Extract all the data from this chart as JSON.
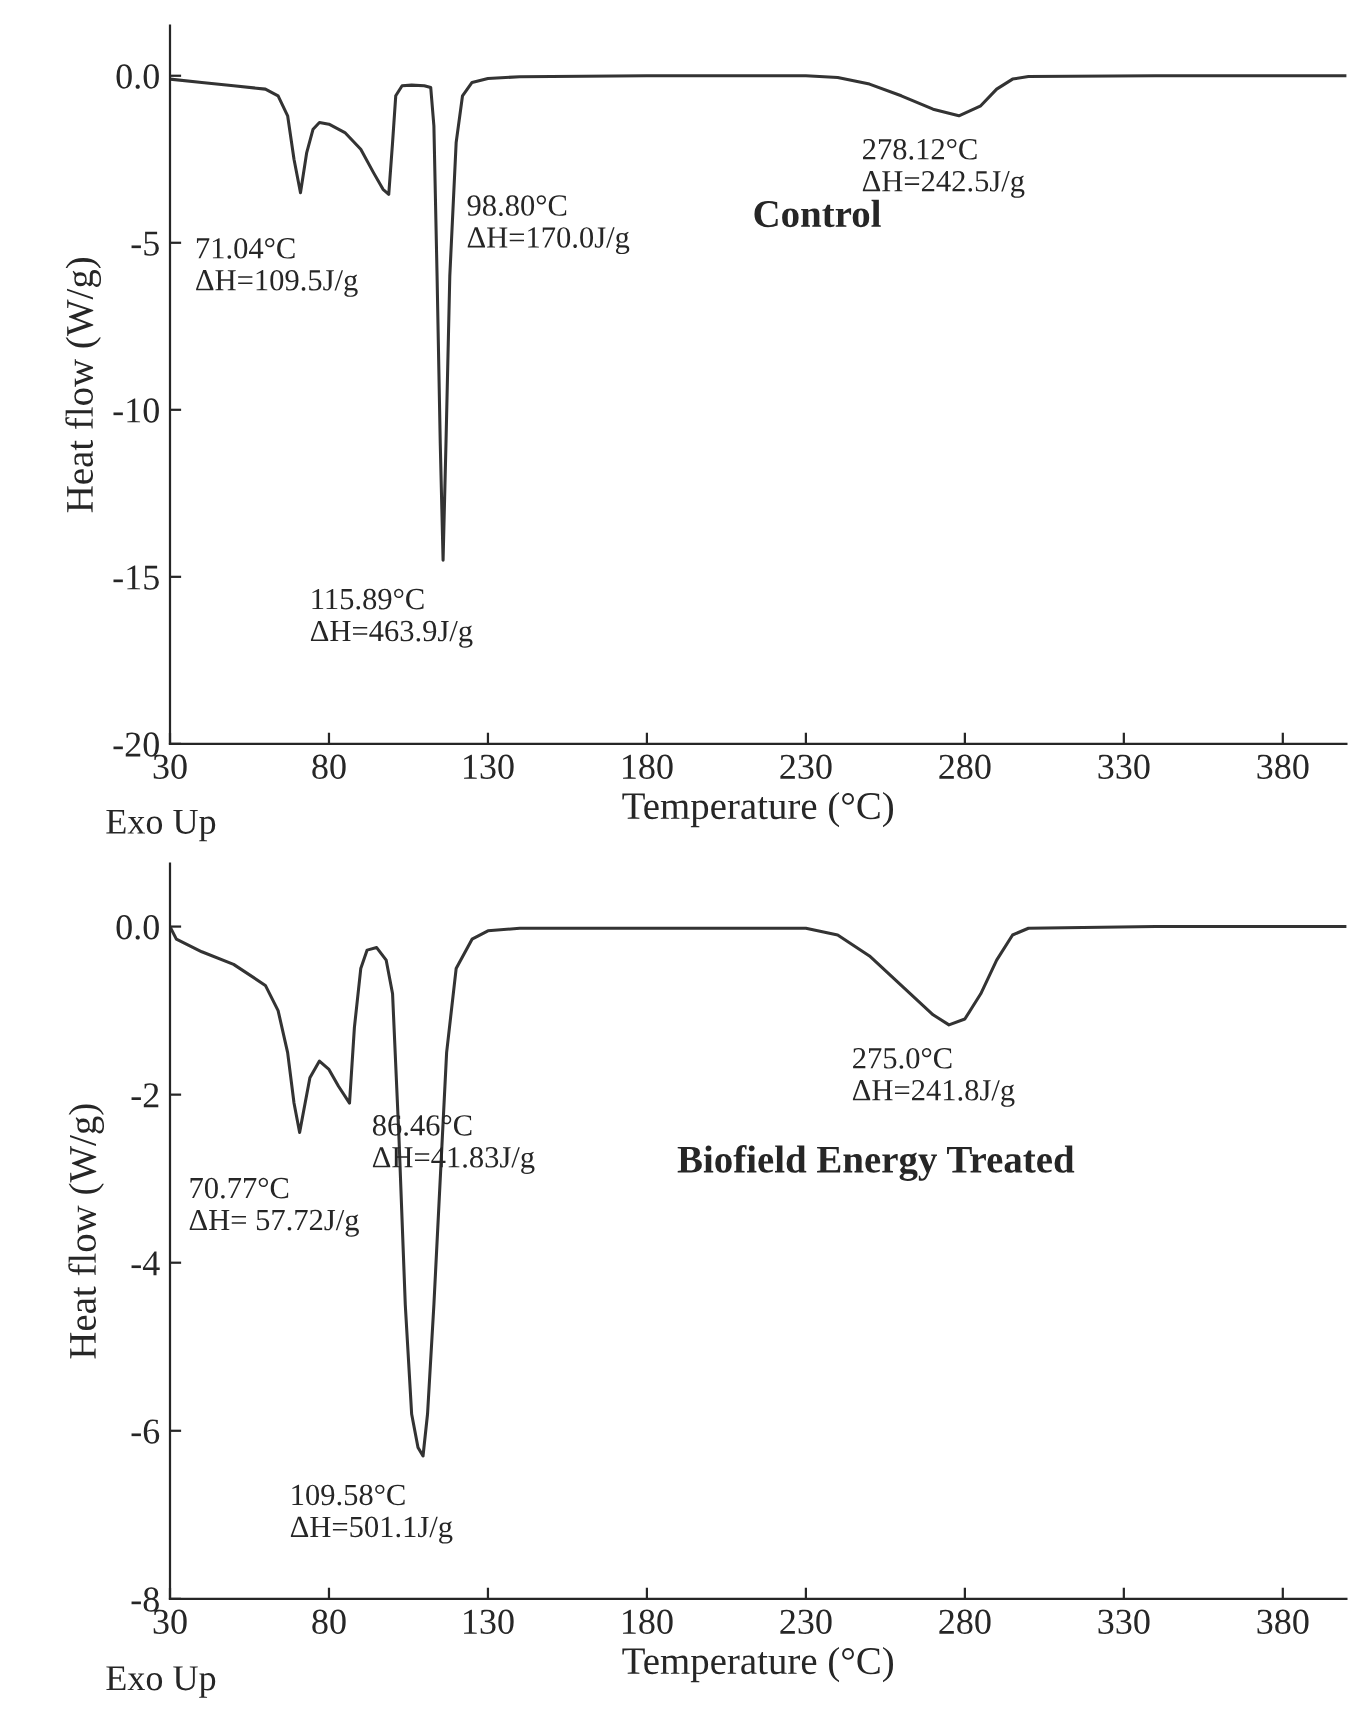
{
  "chart_data": [
    {
      "type": "line",
      "xlabel": "Temperature (°C)",
      "ylabel": "Heat flow (W/g)",
      "grid": false,
      "legend": false,
      "marker": "none",
      "line_style": "solid",
      "xlim": [
        30,
        400
      ],
      "xticks": [
        30,
        80,
        130,
        180,
        230,
        280,
        330,
        380
      ],
      "ylim": [
        -20,
        1.5
      ],
      "yticks": [
        {
          "value": 0,
          "label": "0.0"
        },
        -5,
        -10,
        -15,
        -20
      ],
      "series": [
        {
          "color": "#333333",
          "x": [
            30,
            40,
            50,
            60,
            64,
            67,
            69,
            71.04,
            73,
            75,
            77,
            80,
            85,
            90,
            94,
            97,
            98.8,
            100,
            101,
            103,
            106,
            110,
            112,
            113,
            114,
            115,
            115.89,
            116.8,
            118,
            120,
            122,
            125,
            130,
            140,
            180,
            230,
            240,
            250,
            260,
            270,
            278.12,
            285,
            290,
            295,
            300,
            340,
            400
          ],
          "values": [
            -0.1,
            -0.2,
            -0.3,
            -0.4,
            -0.6,
            -1.2,
            -2.5,
            -3.5,
            -2.3,
            -1.6,
            -1.4,
            -1.45,
            -1.7,
            -2.2,
            -2.9,
            -3.4,
            -3.55,
            -2,
            -0.6,
            -0.3,
            -0.28,
            -0.3,
            -0.35,
            -1.5,
            -6,
            -11,
            -14.5,
            -11,
            -6,
            -2,
            -0.6,
            -0.2,
            -0.08,
            -0.03,
            0,
            0,
            -0.05,
            -0.25,
            -0.6,
            -1.0,
            -1.2,
            -0.9,
            -0.4,
            -0.1,
            -0.02,
            0,
            0
          ]
        }
      ],
      "annotations": [
        {
          "text": "71.04°C\nΔH=109.5J/g",
          "x": 71.04,
          "y": -3.5
        },
        {
          "text": "98.80°C\nΔH=170.0J/g",
          "x": 98.8,
          "y": -3.55
        },
        {
          "text": "115.89°C\nΔH=463.9J/g",
          "x": 115.89,
          "y": -14.5
        },
        {
          "text": "278.12°C\nΔH=242.5J/g",
          "x": 278.12,
          "y": -1.2
        },
        "Control",
        "Exo Up"
      ]
    },
    {
      "type": "line",
      "xlabel": "Temperature (°C)",
      "ylabel": "Heat flow (W/g)",
      "grid": false,
      "legend": false,
      "marker": "none",
      "line_style": "solid",
      "xlim": [
        30,
        400
      ],
      "xticks": [
        30,
        80,
        130,
        180,
        230,
        280,
        330,
        380
      ],
      "ylim": [
        -8,
        0.75
      ],
      "yticks": [
        {
          "value": 0,
          "label": "0.0"
        },
        -2,
        -4,
        -6,
        -8
      ],
      "series": [
        {
          "color": "#333333",
          "x": [
            30,
            32,
            40,
            50,
            60,
            64,
            67,
            69,
            70.77,
            72,
            74,
            77,
            80,
            83,
            86.46,
            88,
            90,
            92,
            95,
            98,
            100,
            102,
            104,
            106,
            108,
            109.58,
            111,
            113,
            115,
            117,
            120,
            125,
            130,
            140,
            180,
            230,
            240,
            250,
            260,
            270,
            275,
            280,
            285,
            290,
            295,
            300,
            340,
            400
          ],
          "values": [
            0,
            -0.15,
            -0.3,
            -0.45,
            -0.7,
            -1.0,
            -1.5,
            -2.1,
            -2.45,
            -2.2,
            -1.8,
            -1.6,
            -1.7,
            -1.9,
            -2.1,
            -1.2,
            -0.5,
            -0.28,
            -0.25,
            -0.4,
            -0.8,
            -2.5,
            -4.5,
            -5.8,
            -6.2,
            -6.3,
            -5.8,
            -4.5,
            -3.0,
            -1.5,
            -0.5,
            -0.15,
            -0.05,
            -0.02,
            -0.02,
            -0.02,
            -0.1,
            -0.35,
            -0.7,
            -1.05,
            -1.17,
            -1.1,
            -0.8,
            -0.4,
            -0.1,
            -0.02,
            0,
            0
          ]
        }
      ],
      "annotations": [
        {
          "text": "70.77°C\nΔH= 57.72J/g",
          "x": 70.77,
          "y": -2.45
        },
        {
          "text": "86.46°C\nΔH=41.83J/g",
          "x": 86.46,
          "y": -2.1
        },
        {
          "text": "109.58°C\nΔH=501.1J/g",
          "x": 109.58,
          "y": -6.3
        },
        {
          "text": "275.0°C\nΔH=241.8J/g",
          "x": 275,
          "y": -1.17
        },
        "Biofield Energy Treated",
        "Exo Up"
      ]
    }
  ]
}
